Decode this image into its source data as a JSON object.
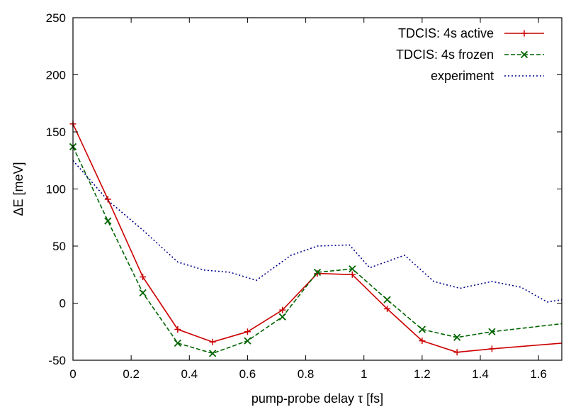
{
  "chart_data": {
    "type": "line",
    "title": "",
    "xlabel": "pump-probe delay τ [fs]",
    "ylabel": "ΔE [meV]",
    "xlim": [
      0,
      1.68
    ],
    "ylim": [
      -50,
      250
    ],
    "xticks": [
      0,
      0.2,
      0.4,
      0.6,
      0.8,
      1,
      1.2,
      1.4,
      1.6
    ],
    "xtick_labels": [
      "0",
      "0.2",
      "0.4",
      "0.6",
      "0.8",
      "1",
      "1.2",
      "1.4",
      "1.6"
    ],
    "yticks": [
      -50,
      0,
      50,
      100,
      150,
      200,
      250
    ],
    "ytick_labels": [
      "-50",
      "0",
      "50",
      "100",
      "150",
      "200",
      "250"
    ],
    "grid": false,
    "legend_position": "top-right",
    "series": [
      {
        "name": "TDCIS: 4s active",
        "color": "#cc0000",
        "line_style": "solid",
        "marker": "plus",
        "x": [
          0,
          0.12,
          0.24,
          0.36,
          0.48,
          0.6,
          0.72,
          0.84,
          0.96,
          1.08,
          1.2,
          1.32,
          1.44,
          1.68
        ],
        "y": [
          157,
          91,
          23,
          -23,
          -34,
          -25,
          -6,
          26,
          25,
          -5,
          -33,
          -43,
          -40,
          -35
        ],
        "markers_at": [
          0,
          0.12,
          0.24,
          0.36,
          0.48,
          0.6,
          0.72,
          0.84,
          0.96,
          1.08,
          1.2,
          1.32,
          1.44
        ]
      },
      {
        "name": "TDCIS: 4s frozen",
        "color": "#006400",
        "line_style": "dashed",
        "marker": "cross",
        "x": [
          0,
          0.12,
          0.24,
          0.36,
          0.48,
          0.6,
          0.72,
          0.84,
          0.96,
          1.08,
          1.2,
          1.32,
          1.44,
          1.68
        ],
        "y": [
          137,
          72,
          9,
          -35,
          -44,
          -33,
          -12,
          27,
          30,
          3,
          -23,
          -30,
          -25,
          -18
        ],
        "markers_at": [
          0,
          0.12,
          0.24,
          0.36,
          0.48,
          0.6,
          0.72,
          0.84,
          0.96,
          1.08,
          1.2,
          1.32,
          1.44
        ]
      },
      {
        "name": "experiment",
        "color": "#00008b",
        "line_style": "dotted",
        "marker": "none",
        "x": [
          0,
          0.12,
          0.24,
          0.36,
          0.45,
          0.54,
          0.63,
          0.75,
          0.84,
          0.95,
          1.02,
          1.14,
          1.24,
          1.33,
          1.44,
          1.54,
          1.63,
          1.68
        ],
        "y": [
          125,
          90,
          64,
          36,
          29,
          27,
          20,
          42,
          50,
          51,
          31,
          42,
          19,
          13,
          19,
          14,
          1,
          3
        ],
        "markers_at": []
      }
    ]
  }
}
